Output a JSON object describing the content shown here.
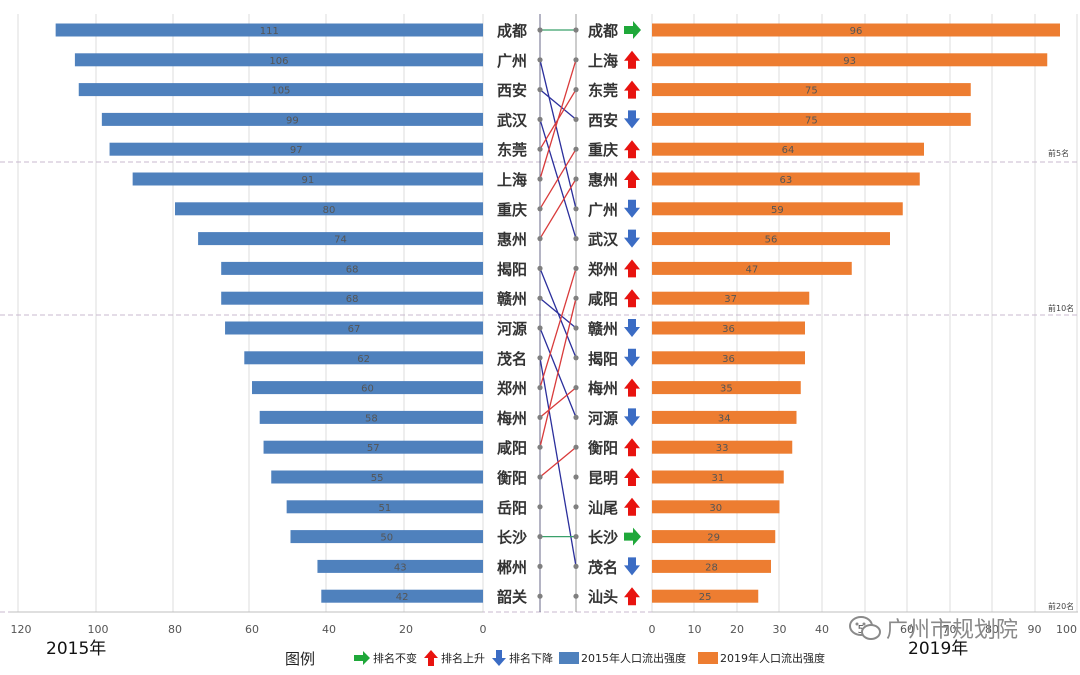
{
  "chart_data": {
    "type": "bar",
    "title": "",
    "left_series": {
      "name": "2015年人口流出强度",
      "year_label": "2015年",
      "color": "#4f81bd",
      "xlim": [
        120,
        0
      ],
      "ticks": [
        "120",
        "100",
        "80",
        "60",
        "40",
        "20",
        "0"
      ],
      "categories": [
        "成都",
        "广州",
        "西安",
        "武汉",
        "东莞",
        "上海",
        "重庆",
        "惠州",
        "揭阳",
        "赣州",
        "河源",
        "茂名",
        "郑州",
        "梅州",
        "咸阳",
        "衡阳",
        "岳阳",
        "长沙",
        "郴州",
        "韶关"
      ],
      "values": [
        111,
        106,
        105,
        99,
        97,
        91,
        80,
        74,
        68,
        68,
        67,
        62,
        60,
        58,
        57,
        55,
        51,
        50,
        43,
        42
      ]
    },
    "right_series": {
      "name": "2019年人口流出强度",
      "year_label": "2019年",
      "color": "#ed7d31",
      "xlim": [
        0,
        100
      ],
      "ticks": [
        "0",
        "10",
        "20",
        "30",
        "40",
        "50",
        "60",
        "70",
        "80",
        "90",
        "100"
      ],
      "categories": [
        "成都",
        "上海",
        "东莞",
        "西安",
        "重庆",
        "惠州",
        "广州",
        "武汉",
        "郑州",
        "咸阳",
        "赣州",
        "揭阳",
        "梅州",
        "河源",
        "衡阳",
        "昆明",
        "汕尾",
        "长沙",
        "茂名",
        "汕头"
      ],
      "values": [
        96,
        93,
        75,
        75,
        64,
        63,
        59,
        56,
        47,
        37,
        36,
        36,
        35,
        34,
        33,
        31,
        30,
        29,
        28,
        25
      ],
      "rank_change": [
        "same",
        "up",
        "up",
        "down",
        "up",
        "up",
        "down",
        "down",
        "up",
        "up",
        "down",
        "down",
        "up",
        "down",
        "up",
        "up",
        "up",
        "same",
        "down",
        "up"
      ]
    },
    "rank_markers": [
      "前5名",
      "前10名",
      "前20名"
    ],
    "legend": {
      "title": "图例",
      "same": "排名不变",
      "up": "排名上升",
      "down": "排名下降"
    }
  },
  "watermark": "广州市规划院",
  "colors": {
    "up": "#e8130f",
    "down": "#3b6cc4",
    "same": "#1fa83a",
    "line_up": "#d93b3b",
    "line_down": "#2b2f9c",
    "line_same": "#3aa06a"
  }
}
